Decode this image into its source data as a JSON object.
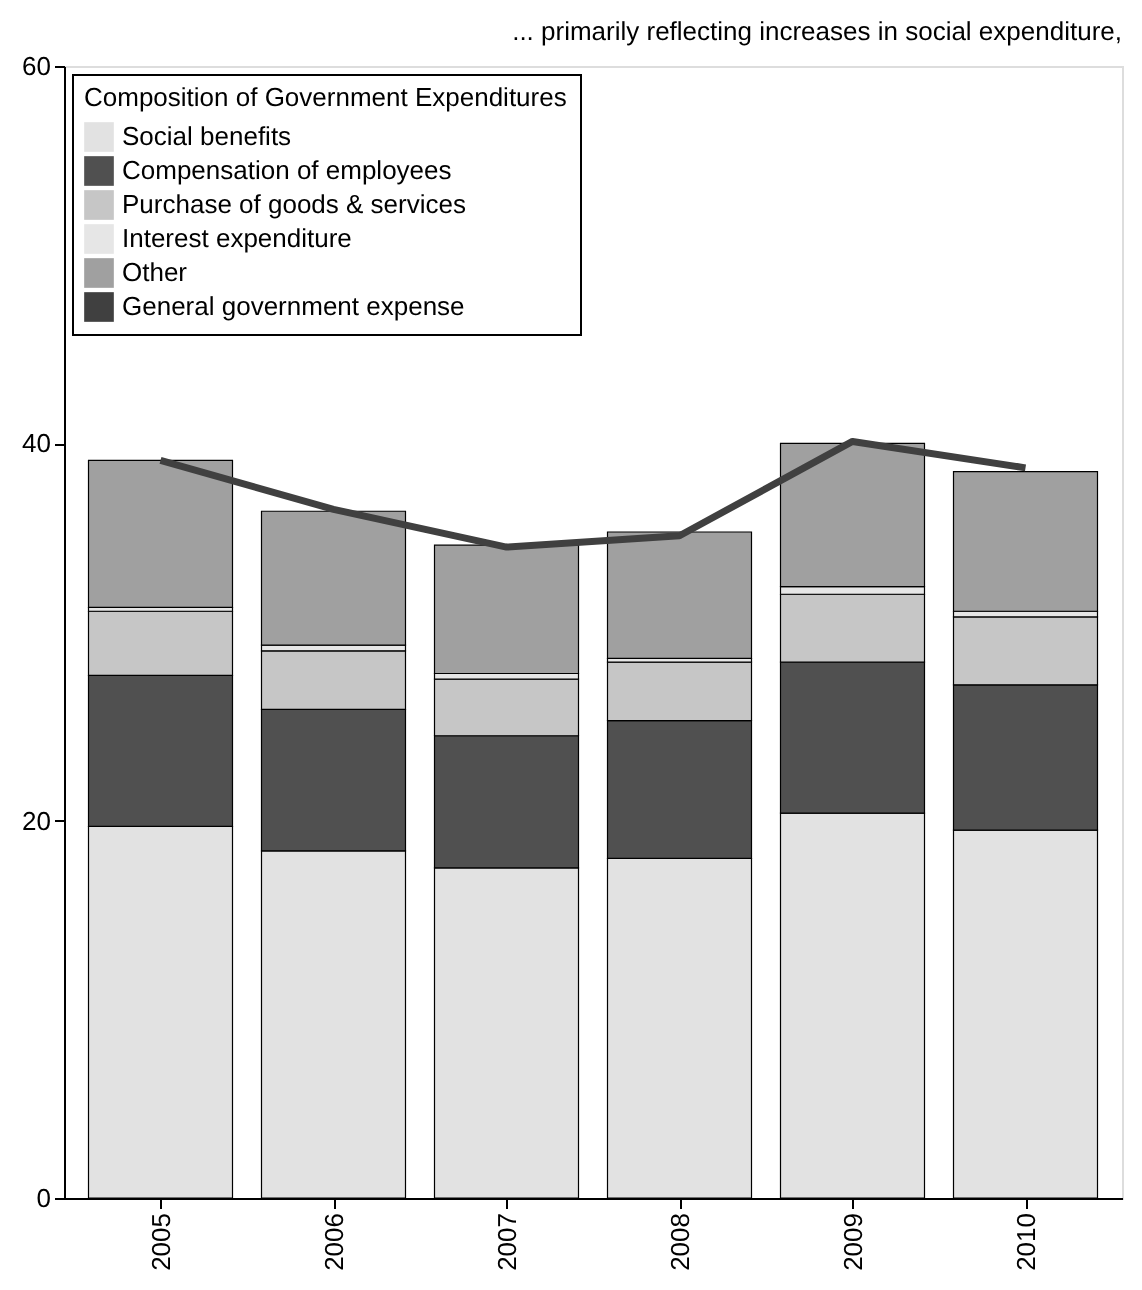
{
  "chart_data": {
    "type": "bar",
    "stacked": true,
    "title": "... primarily reflecting increases in social expenditure,",
    "legend_title": "Composition of Government Expenditures",
    "categories": [
      "2005",
      "2006",
      "2007",
      "2008",
      "2009",
      "2010"
    ],
    "series": [
      {
        "name": "Social benefits",
        "color": "#e2e2e2",
        "values": [
          19.7,
          18.4,
          17.5,
          18.0,
          20.4,
          19.5
        ]
      },
      {
        "name": "Compensation of employees",
        "color": "#505050",
        "values": [
          8.0,
          7.5,
          7.0,
          7.3,
          8.0,
          7.7
        ]
      },
      {
        "name": "Purchase of goods & services",
        "color": "#c6c6c6",
        "values": [
          3.4,
          3.1,
          3.0,
          3.1,
          3.6,
          3.6
        ]
      },
      {
        "name": "Interest expenditure",
        "color": "#e6e6e6",
        "values": [
          0.2,
          0.3,
          0.3,
          0.2,
          0.4,
          0.3
        ]
      },
      {
        "name": "Other",
        "color": "#a0a0a0",
        "values": [
          7.8,
          7.1,
          6.8,
          6.7,
          7.6,
          7.4
        ]
      },
      {
        "name": "General government expense",
        "type": "line",
        "color": "#404040",
        "values": [
          39.1,
          36.5,
          34.5,
          35.1,
          40.1,
          38.7
        ]
      }
    ],
    "ylim": [
      0,
      60
    ],
    "yticks": [
      0,
      20,
      40,
      60
    ],
    "grid": false,
    "legend": "top left"
  }
}
